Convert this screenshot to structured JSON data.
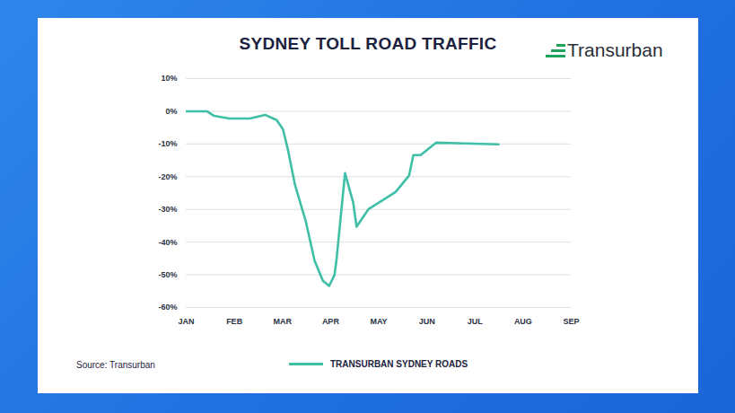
{
  "chart_data": {
    "type": "line",
    "title": "SYDNEY TOLL ROAD TRAFFIC",
    "source": "Source: Transurban",
    "brand": "Transurban",
    "x": [
      0,
      0.43,
      0.58,
      0.9,
      1.32,
      1.64,
      1.88,
      2.01,
      2.11,
      2.26,
      2.48,
      2.67,
      2.84,
      2.97,
      3.08,
      3.12,
      3.3,
      3.47,
      3.54,
      3.79,
      4.35,
      4.63,
      4.72,
      4.87,
      5.19,
      6.49
    ],
    "series": [
      {
        "name": "TRANSURBAN SYDNEY ROADS",
        "color": "#3fbfa6",
        "values": [
          0,
          0,
          -1.4,
          -2.2,
          -2.2,
          -1.1,
          -2.7,
          -5.5,
          -11.5,
          -22.5,
          -33.4,
          -45.8,
          -51.8,
          -53.4,
          -50.1,
          -45.8,
          -18.9,
          -27.9,
          -35.3,
          -29.9,
          -24.7,
          -19.7,
          -13.4,
          -13.4,
          -9.6,
          -10.1
        ]
      }
    ],
    "xlim": [
      0,
      8
    ],
    "xticks": [
      {
        "value": 0,
        "label": "JAN"
      },
      {
        "value": 1,
        "label": "FEB"
      },
      {
        "value": 2,
        "label": "MAR"
      },
      {
        "value": 3,
        "label": "APR"
      },
      {
        "value": 4,
        "label": "MAY"
      },
      {
        "value": 5,
        "label": "JUN"
      },
      {
        "value": 6,
        "label": "JUL"
      },
      {
        "value": 7,
        "label": "AUG"
      },
      {
        "value": 8,
        "label": "SEP"
      }
    ],
    "ylim": [
      -60,
      10
    ],
    "yticks": [
      {
        "value": 10,
        "label": "10%"
      },
      {
        "value": 0,
        "label": "0%"
      },
      {
        "value": -10,
        "label": "-10%"
      },
      {
        "value": -20,
        "label": "-20%"
      },
      {
        "value": -30,
        "label": "-30%"
      },
      {
        "value": -40,
        "label": "-40%"
      },
      {
        "value": -50,
        "label": "-50%"
      },
      {
        "value": -60,
        "label": "-60%"
      }
    ],
    "grid": true
  }
}
